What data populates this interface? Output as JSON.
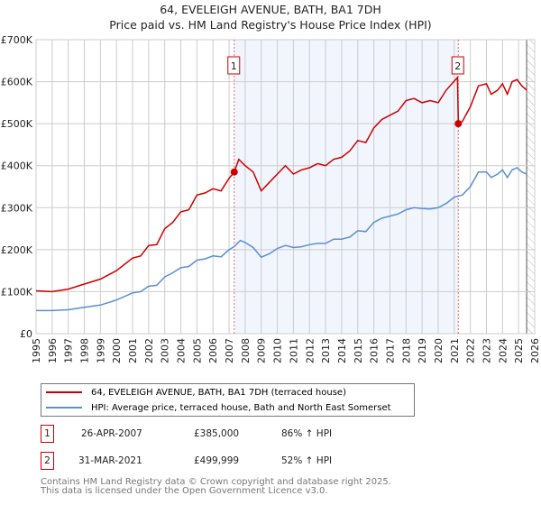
{
  "chart_data": {
    "type": "line",
    "title": "64, EVELEIGH AVENUE, BATH, BA1 7DH",
    "subtitle": "Price paid vs. HM Land Registry's House Price Index (HPI)",
    "xlim": [
      1995,
      2026
    ],
    "ylim": [
      0,
      700000
    ],
    "yticks": [
      0,
      100000,
      200000,
      300000,
      400000,
      500000,
      600000,
      700000
    ],
    "ytick_labels": [
      "£0",
      "£100K",
      "£200K",
      "£300K",
      "£400K",
      "£500K",
      "£600K",
      "£700K"
    ],
    "xticks": [
      "1995",
      "1996",
      "1997",
      "1998",
      "1999",
      "2000",
      "2001",
      "2002",
      "2003",
      "2004",
      "2005",
      "2006",
      "2007",
      "2008",
      "2009",
      "2010",
      "2011",
      "2012",
      "2013",
      "2014",
      "2015",
      "2016",
      "2017",
      "2018",
      "2019",
      "2020",
      "2021",
      "2022",
      "2023",
      "2024",
      "2025",
      "2026"
    ],
    "grid": true,
    "shaded_range": [
      2007.32,
      2021.25
    ],
    "future_hatch_from": 2025.5,
    "series": [
      {
        "name": "64, EVELEIGH AVENUE, BATH, BA1 7DH (terraced house)",
        "color": "#cc0000",
        "x": [
          1995,
          1996,
          1997,
          1998,
          1999,
          2000,
          2001,
          2001.5,
          2002,
          2002.5,
          2003,
          2003.5,
          2004,
          2004.5,
          2005,
          2005.5,
          2006,
          2006.5,
          2007,
          2007.32,
          2007.6,
          2008,
          2008.5,
          2009,
          2009.5,
          2010,
          2010.5,
          2011,
          2011.5,
          2012,
          2012.5,
          2013,
          2013.5,
          2014,
          2014.5,
          2015,
          2015.5,
          2016,
          2016.5,
          2017,
          2017.5,
          2018,
          2018.5,
          2019,
          2019.5,
          2020,
          2020.5,
          2021.2,
          2021.25,
          2021.5,
          2022,
          2022.5,
          2023,
          2023.3,
          2023.7,
          2024,
          2024.3,
          2024.6,
          2024.9,
          2025.2,
          2025.5
        ],
        "y": [
          102000,
          100000,
          106000,
          118000,
          130000,
          150000,
          180000,
          185000,
          210000,
          212000,
          250000,
          265000,
          290000,
          295000,
          330000,
          335000,
          345000,
          340000,
          370000,
          385000,
          415000,
          400000,
          385000,
          340000,
          360000,
          380000,
          400000,
          380000,
          390000,
          395000,
          405000,
          400000,
          415000,
          420000,
          435000,
          460000,
          455000,
          490000,
          510000,
          520000,
          530000,
          555000,
          560000,
          550000,
          555000,
          550000,
          580000,
          610000,
          499999,
          505000,
          540000,
          590000,
          595000,
          570000,
          580000,
          595000,
          570000,
          600000,
          605000,
          590000,
          580000
        ]
      },
      {
        "name": "HPI: Average price, terraced house, Bath and North East Somerset",
        "color": "#5b8fd4",
        "x": [
          1995,
          1996,
          1997,
          1998,
          1999,
          2000,
          2001,
          2001.5,
          2002,
          2002.5,
          2003,
          2003.5,
          2004,
          2004.5,
          2005,
          2005.5,
          2006,
          2006.5,
          2007,
          2007.3,
          2007.7,
          2008,
          2008.5,
          2009,
          2009.5,
          2010,
          2010.5,
          2011,
          2011.5,
          2012,
          2012.5,
          2013,
          2013.5,
          2014,
          2014.5,
          2015,
          2015.5,
          2016,
          2016.5,
          2017,
          2017.5,
          2018,
          2018.5,
          2019,
          2019.5,
          2020,
          2020.5,
          2021,
          2021.5,
          2022,
          2022.5,
          2023,
          2023.3,
          2023.7,
          2024,
          2024.3,
          2024.6,
          2024.9,
          2025.2,
          2025.5
        ],
        "y": [
          55000,
          55000,
          57000,
          63000,
          68000,
          80000,
          97000,
          100000,
          113000,
          115000,
          135000,
          145000,
          157000,
          160000,
          175000,
          178000,
          185000,
          183000,
          200000,
          207000,
          222000,
          217000,
          205000,
          182000,
          190000,
          203000,
          210000,
          205000,
          207000,
          212000,
          215000,
          215000,
          225000,
          225000,
          230000,
          245000,
          243000,
          265000,
          275000,
          280000,
          285000,
          295000,
          300000,
          298000,
          297000,
          300000,
          310000,
          325000,
          330000,
          350000,
          385000,
          385000,
          372000,
          380000,
          390000,
          372000,
          390000,
          395000,
          385000,
          380000
        ]
      }
    ],
    "sales": [
      {
        "label": "1",
        "x": 2007.32,
        "y": 385000,
        "date": "26-APR-2007",
        "price": "£385,000",
        "hpi": "86% ↑ HPI"
      },
      {
        "label": "2",
        "x": 2021.25,
        "y": 499999,
        "date": "31-MAR-2021",
        "price": "£499,999",
        "hpi": "52% ↑ HPI"
      }
    ]
  },
  "footer": {
    "line1": "Contains HM Land Registry data © Crown copyright and database right 2025.",
    "line2": "This data is licensed under the Open Government Licence v3.0."
  }
}
